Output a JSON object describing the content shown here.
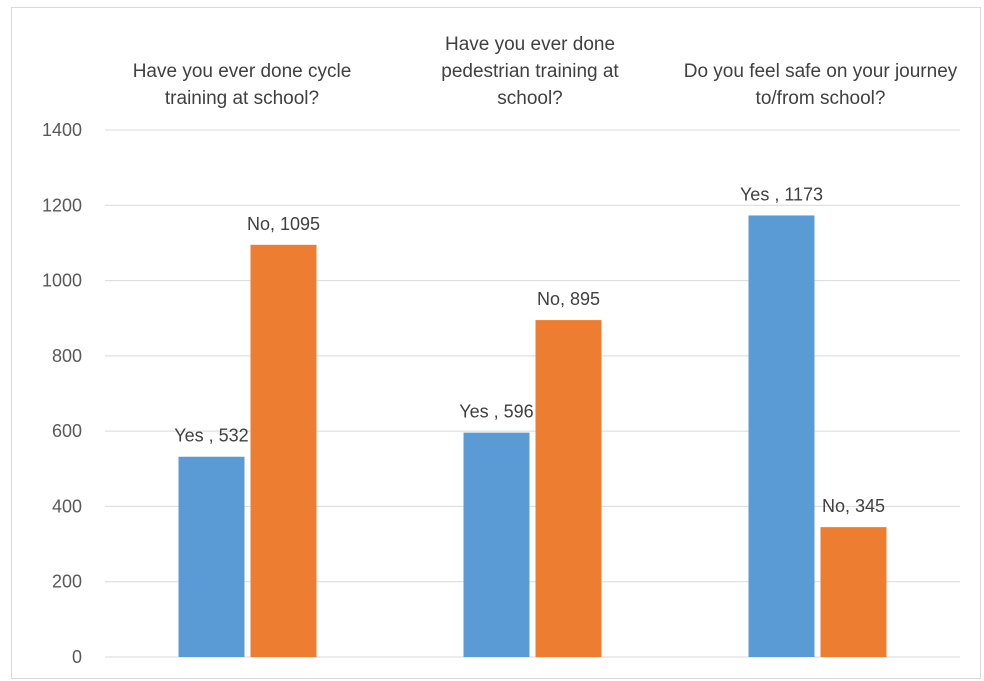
{
  "chart_data": {
    "type": "bar",
    "categories": [
      "Have you ever done cycle training at school?",
      "Have you ever done pedestrian training at school?",
      "Do you feel safe on your journey to/from school?"
    ],
    "series": [
      {
        "values": [
          532,
          596,
          1173
        ],
        "color": "#5b9bd5",
        "labels": [
          "Yes , 532",
          "Yes , 596",
          "Yes , 1173"
        ]
      },
      {
        "values": [
          1095,
          895,
          345
        ],
        "color": "#ed7d31",
        "labels": [
          "No, 1095",
          "No, 895",
          "No, 345"
        ]
      }
    ],
    "ylim": [
      0,
      1400
    ],
    "yticks": [
      0,
      200,
      400,
      600,
      800,
      1000,
      1200,
      1400
    ],
    "grid": true,
    "category_label_position": "top",
    "colors": {
      "gridline": "#d9d9d9",
      "tick_text": "#595959",
      "label_text": "#404040"
    }
  }
}
